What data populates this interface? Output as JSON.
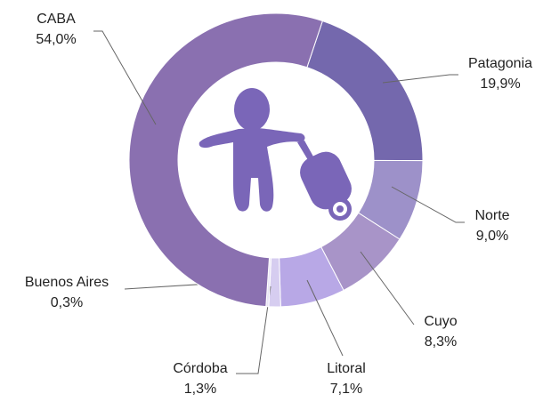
{
  "chart_data": {
    "type": "donut",
    "categories": [
      "Patagonia",
      "Norte",
      "Cuyo",
      "Litoral",
      "Córdoba",
      "Buenos Aires",
      "CABA"
    ],
    "values": [
      19.9,
      9.0,
      8.3,
      7.1,
      1.3,
      0.3,
      54.0
    ],
    "value_labels": [
      "19,9%",
      "9,0%",
      "8,3%",
      "7,1%",
      "1,3%",
      "0,3%",
      "54,0%"
    ],
    "colors": [
      "#7468ad",
      "#9d91c9",
      "#a894c8",
      "#b8a8e6",
      "#d6cdf0",
      "#e9e4f6",
      "#8a70b0"
    ]
  }
}
